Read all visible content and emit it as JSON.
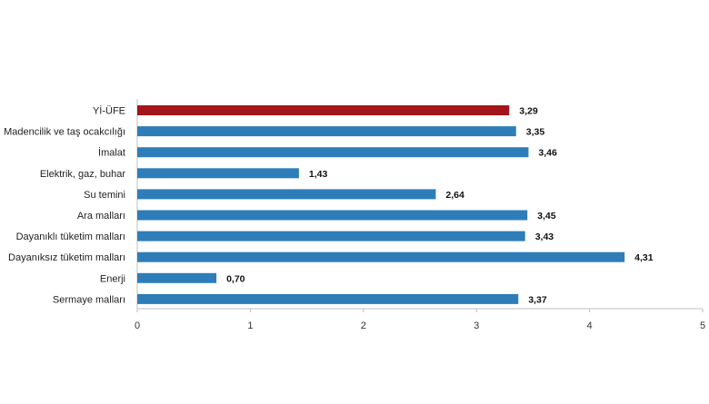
{
  "chart_data": {
    "type": "bar",
    "orientation": "horizontal",
    "categories": [
      "Yİ-ÜFE",
      "Madencilik ve taş ocakcılığı",
      "İmalat",
      "Elektrik, gaz, buhar",
      "Su temini",
      "Ara malları",
      "Dayanıklı tüketim malları",
      "Dayanıksız tüketim malları",
      "Enerji",
      "Sermaye malları"
    ],
    "values": [
      3.29,
      3.35,
      3.46,
      1.43,
      2.64,
      3.45,
      3.43,
      4.31,
      0.7,
      3.37
    ],
    "value_labels": [
      "3,29",
      "3,35",
      "3,46",
      "1,43",
      "2,64",
      "3,45",
      "3,43",
      "4,31",
      "0,70",
      "3,37"
    ],
    "xlim": [
      0,
      5
    ],
    "xticks": [
      0,
      1,
      2,
      3,
      4,
      5
    ],
    "xtick_labels": [
      "0",
      "1",
      "2",
      "3",
      "4",
      "5"
    ],
    "title": "",
    "xlabel": "",
    "ylabel": "",
    "grid": false,
    "colors": {
      "highlight": "#A3151B",
      "default": "#2E7DB8",
      "axis": "#BFBFBF"
    },
    "highlight_index": 0
  }
}
